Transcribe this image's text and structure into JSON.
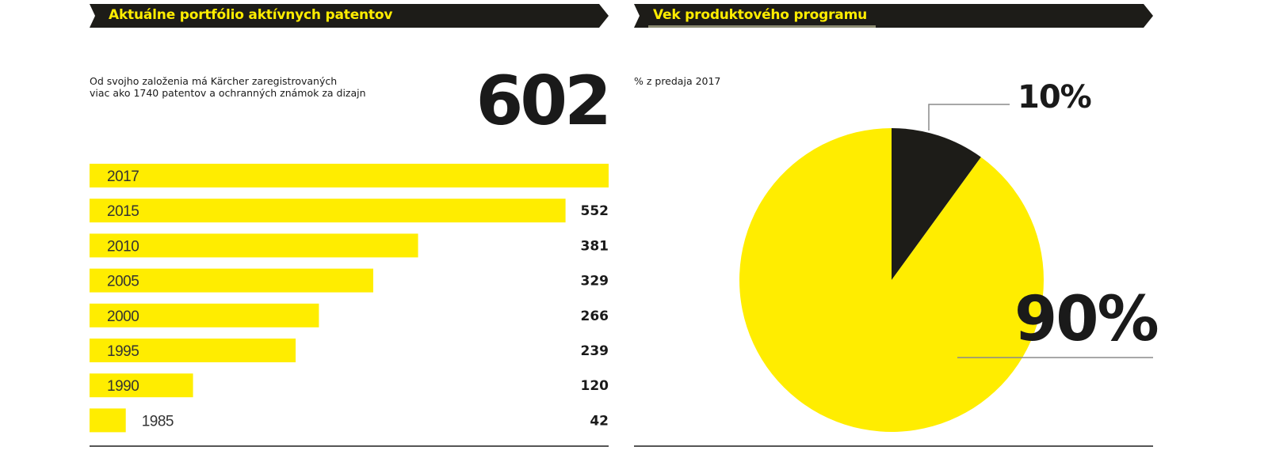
{
  "colors": {
    "accent": "#ffed00",
    "dark": "#1d1c18",
    "text": "#1a1a1a",
    "rule": "#555555"
  },
  "left_panel": {
    "title": "Aktuálne portfólio aktívnych patentov",
    "description_line1": "Od svojho založenia má Kärcher zaregistrovaných",
    "description_line2": "viac ako 1740 patentov a ochranných známok za dizajn",
    "total": "602"
  },
  "right_panel": {
    "title": "Vek produktového programu",
    "subtitle": "% z predaja 2017"
  },
  "chart_data": [
    {
      "type": "bar",
      "orientation": "horizontal",
      "title": "Aktuálne portfólio aktívnych patentov",
      "categories": [
        "2017",
        "2015",
        "2010",
        "2005",
        "2000",
        "1995",
        "1990",
        "1985"
      ],
      "values": [
        602,
        552,
        381,
        329,
        266,
        239,
        120,
        42
      ],
      "value_labels": [
        "",
        "552",
        "381",
        "329",
        "266",
        "239",
        "120",
        "42"
      ],
      "xlim": [
        0,
        602
      ],
      "grid": false,
      "color": "#ffed00"
    },
    {
      "type": "pie",
      "title": "Vek produktového programu",
      "subtitle": "% z predaja 2017",
      "labels": [
        "10%",
        "90%"
      ],
      "values": [
        10,
        90
      ],
      "colors": [
        "#1d1c18",
        "#ffed00"
      ]
    }
  ]
}
